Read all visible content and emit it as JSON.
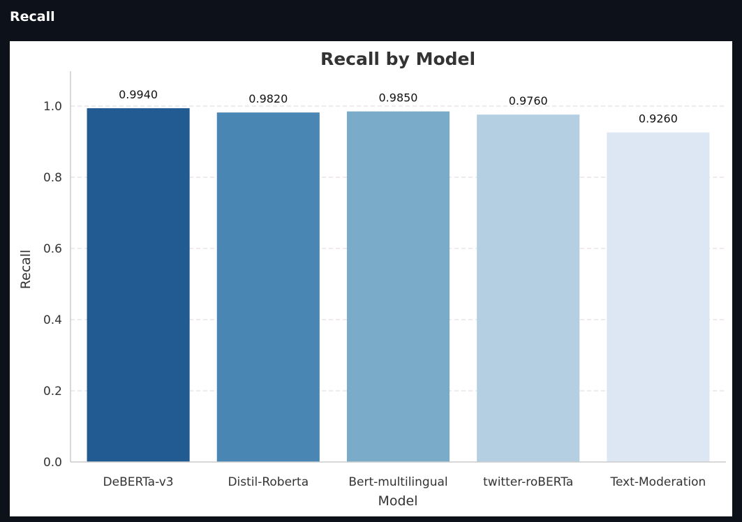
{
  "panel": {
    "title": "Recall"
  },
  "chart_data": {
    "type": "bar",
    "title": "Recall by Model",
    "xlabel": "Model",
    "ylabel": "Recall",
    "categories": [
      "DeBERTa-v3",
      "Distil-Roberta",
      "Bert-multilingual",
      "twitter-roBERTa",
      "Text-Moderation"
    ],
    "values": [
      0.994,
      0.982,
      0.985,
      0.976,
      0.926
    ],
    "value_labels": [
      "0.9940",
      "0.9820",
      "0.9850",
      "0.9760",
      "0.9260"
    ],
    "colors": [
      "#225b91",
      "#4a86b3",
      "#7aacc9",
      "#b3cfe1",
      "#dce7f3"
    ],
    "ylim": [
      0,
      1.1
    ],
    "yticks": [
      0.0,
      0.2,
      0.4,
      0.6,
      0.8,
      1.0
    ],
    "ytick_labels": [
      "0.0",
      "0.2",
      "0.4",
      "0.6",
      "0.8",
      "1.0"
    ],
    "grid": "y-dashed",
    "legend": "none"
  }
}
